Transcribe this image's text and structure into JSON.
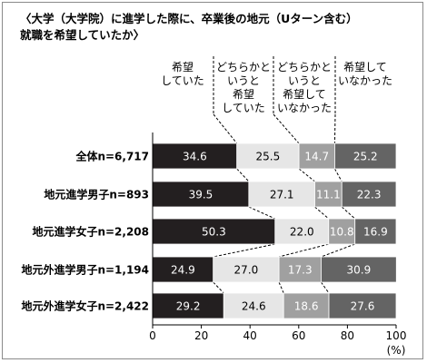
{
  "chart_data": {
    "type": "bar",
    "stacked": "percent",
    "orientation": "horizontal",
    "title_lines": [
      "〈大学（大学院）に進学した際に、卒業後の地元（Uターン含む）",
      "就職を希望していたか〉"
    ],
    "categories": [
      "全体n=6,717",
      "地元進学男子n=893",
      "地元進学女子n=2,208",
      "地元外進学男子n=1,194",
      "地元外進学女子n=2,422"
    ],
    "series": [
      {
        "name_lines": [
          "希望",
          "していた"
        ],
        "color": "#231f20",
        "text_color": "#ffffff",
        "values": [
          34.6,
          39.5,
          50.3,
          24.9,
          29.2
        ]
      },
      {
        "name_lines": [
          "どちらかと",
          "いうと",
          "希望",
          "していた"
        ],
        "color": "#e6e6e6",
        "text_color": "#000000",
        "values": [
          25.5,
          27.1,
          22.0,
          27.0,
          24.6
        ]
      },
      {
        "name_lines": [
          "どちらかと",
          "いうと",
          "希望して",
          "いなかった"
        ],
        "color": "#a0a0a0",
        "text_color": "#ffffff",
        "values": [
          14.7,
          11.1,
          10.8,
          17.3,
          18.6
        ]
      },
      {
        "name_lines": [
          "希望して",
          "いなかった"
        ],
        "color": "#646464",
        "text_color": "#ffffff",
        "values": [
          25.2,
          22.3,
          16.9,
          30.9,
          27.6
        ]
      }
    ],
    "xlim": [
      0,
      100
    ],
    "xticks": [
      "0",
      "20",
      "40",
      "60",
      "80",
      "100"
    ],
    "xunit": "(%)",
    "grid": false,
    "legend_placement": "top"
  }
}
